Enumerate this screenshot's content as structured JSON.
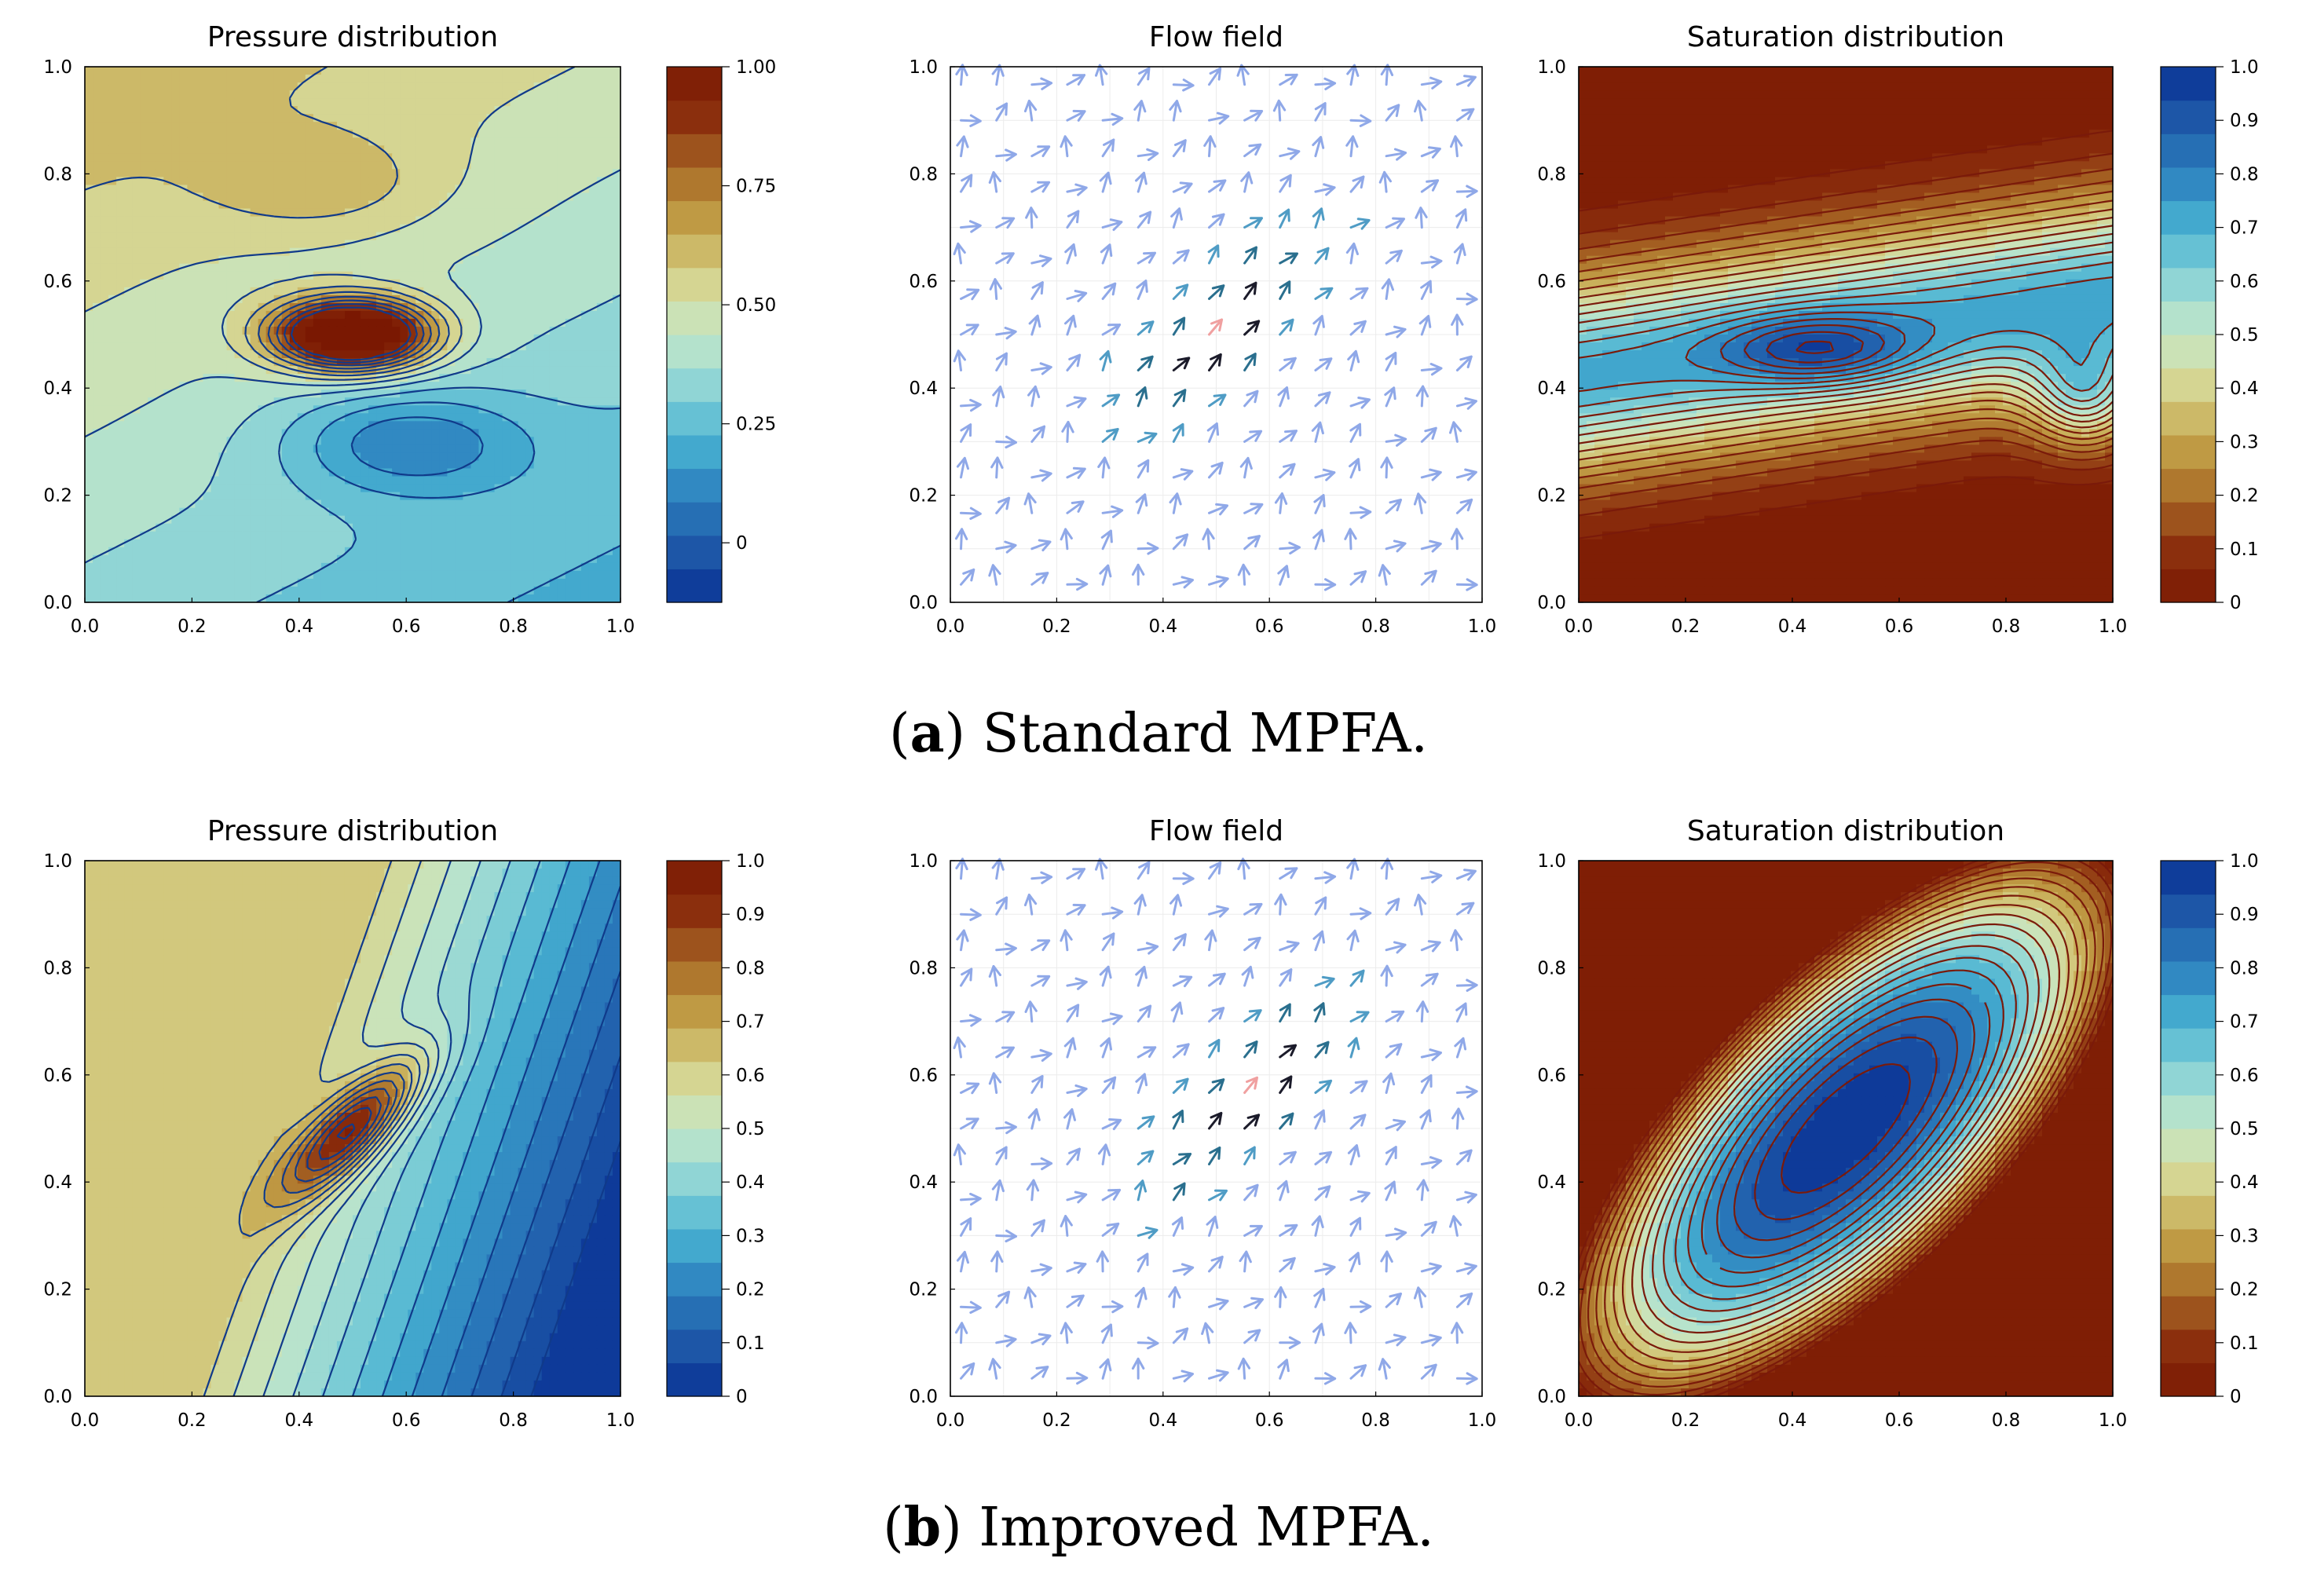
{
  "figure": {
    "captions": [
      {
        "letter": "a",
        "text": "Standard MPFA."
      },
      {
        "letter": "b",
        "text": "Improved MPFA."
      }
    ]
  },
  "chart_data": [
    {
      "type": "heatmap",
      "id": "a-pressure",
      "title": "Pressure distribution",
      "xlim": [
        0,
        1
      ],
      "ylim": [
        0,
        1
      ],
      "xticks": [
        "0.0",
        "0.2",
        "0.4",
        "0.6",
        "0.8",
        "1.0"
      ],
      "yticks": [
        "0.0",
        "0.2",
        "0.4",
        "0.6",
        "0.8",
        "1.0"
      ],
      "field": "pressure_a",
      "colormap": "rdylbu_r",
      "contour_color": "#103a8a",
      "colorbar": {
        "min": -0.125,
        "max": 1.0,
        "ticks": [
          {
            "v": 1.0,
            "label": "1.00"
          },
          {
            "v": 0.75,
            "label": "0.75"
          },
          {
            "v": 0.5,
            "label": "0.50"
          },
          {
            "v": 0.25,
            "label": "0.25"
          },
          {
            "v": 0.0,
            "label": "0"
          }
        ]
      }
    },
    {
      "type": "quiver",
      "id": "a-flow",
      "title": "Flow field",
      "xlim": [
        0,
        1
      ],
      "ylim": [
        0,
        1
      ],
      "xticks": [
        "0.0",
        "0.2",
        "0.4",
        "0.6",
        "0.8",
        "1.0"
      ],
      "yticks": [
        "0.0",
        "0.2",
        "0.4",
        "0.6",
        "0.8",
        "1.0"
      ],
      "grid_n": 15,
      "variant": "a"
    },
    {
      "type": "heatmap",
      "id": "a-saturation",
      "title": "Saturation distribution",
      "xlim": [
        0,
        1
      ],
      "ylim": [
        0,
        1
      ],
      "xticks": [
        "0.0",
        "0.2",
        "0.4",
        "0.6",
        "0.8",
        "1.0"
      ],
      "yticks": [
        "0.0",
        "0.2",
        "0.4",
        "0.6",
        "0.8",
        "1.0"
      ],
      "field": "saturation_a",
      "colormap": "rdylbu",
      "contour_color": "#7a1a0a",
      "colorbar": {
        "min": 0,
        "max": 1.0,
        "ticks": [
          {
            "v": 1.0,
            "label": "1.0"
          },
          {
            "v": 0.9,
            "label": "0.9"
          },
          {
            "v": 0.8,
            "label": "0.8"
          },
          {
            "v": 0.7,
            "label": "0.7"
          },
          {
            "v": 0.6,
            "label": "0.6"
          },
          {
            "v": 0.5,
            "label": "0.5"
          },
          {
            "v": 0.4,
            "label": "0.4"
          },
          {
            "v": 0.3,
            "label": "0.3"
          },
          {
            "v": 0.2,
            "label": "0.2"
          },
          {
            "v": 0.1,
            "label": "0.1"
          },
          {
            "v": 0.0,
            "label": "0"
          }
        ]
      }
    },
    {
      "type": "heatmap",
      "id": "b-pressure",
      "title": "Pressure distribution",
      "xlim": [
        0,
        1
      ],
      "ylim": [
        0,
        1
      ],
      "xticks": [
        "0.0",
        "0.2",
        "0.4",
        "0.6",
        "0.8",
        "1.0"
      ],
      "yticks": [
        "0.0",
        "0.2",
        "0.4",
        "0.6",
        "0.8",
        "1.0"
      ],
      "field": "pressure_b",
      "colormap": "rdylbu_r",
      "contour_color": "#103a8a",
      "colorbar": {
        "min": 0,
        "max": 1.0,
        "ticks": [
          {
            "v": 1.0,
            "label": "1.0"
          },
          {
            "v": 0.9,
            "label": "0.9"
          },
          {
            "v": 0.8,
            "label": "0.8"
          },
          {
            "v": 0.7,
            "label": "0.7"
          },
          {
            "v": 0.6,
            "label": "0.6"
          },
          {
            "v": 0.5,
            "label": "0.5"
          },
          {
            "v": 0.4,
            "label": "0.4"
          },
          {
            "v": 0.3,
            "label": "0.3"
          },
          {
            "v": 0.2,
            "label": "0.2"
          },
          {
            "v": 0.1,
            "label": "0.1"
          },
          {
            "v": 0.0,
            "label": "0"
          }
        ]
      }
    },
    {
      "type": "quiver",
      "id": "b-flow",
      "title": "Flow field",
      "xlim": [
        0,
        1
      ],
      "ylim": [
        0,
        1
      ],
      "xticks": [
        "0.0",
        "0.2",
        "0.4",
        "0.6",
        "0.8",
        "1.0"
      ],
      "yticks": [
        "0.0",
        "0.2",
        "0.4",
        "0.6",
        "0.8",
        "1.0"
      ],
      "grid_n": 15,
      "variant": "b"
    },
    {
      "type": "heatmap",
      "id": "b-saturation",
      "title": "Saturation distribution",
      "xlim": [
        0,
        1
      ],
      "ylim": [
        0,
        1
      ],
      "xticks": [
        "0.0",
        "0.2",
        "0.4",
        "0.6",
        "0.8",
        "1.0"
      ],
      "yticks": [
        "0.0",
        "0.2",
        "0.4",
        "0.6",
        "0.8",
        "1.0"
      ],
      "field": "saturation_b",
      "colormap": "rdylbu",
      "contour_color": "#7a1a0a",
      "colorbar": {
        "min": 0,
        "max": 1.0,
        "ticks": [
          {
            "v": 1.0,
            "label": "1.0"
          },
          {
            "v": 0.9,
            "label": "0.9"
          },
          {
            "v": 0.8,
            "label": "0.8"
          },
          {
            "v": 0.7,
            "label": "0.7"
          },
          {
            "v": 0.6,
            "label": "0.6"
          },
          {
            "v": 0.5,
            "label": "0.5"
          },
          {
            "v": 0.4,
            "label": "0.4"
          },
          {
            "v": 0.3,
            "label": "0.3"
          },
          {
            "v": 0.2,
            "label": "0.2"
          },
          {
            "v": 0.1,
            "label": "0.1"
          },
          {
            "v": 0.0,
            "label": "0"
          }
        ]
      }
    }
  ]
}
